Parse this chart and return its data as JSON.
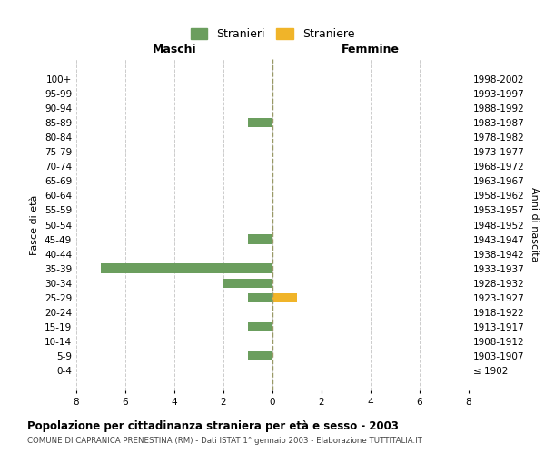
{
  "age_groups": [
    "100+",
    "95-99",
    "90-94",
    "85-89",
    "80-84",
    "75-79",
    "70-74",
    "65-69",
    "60-64",
    "55-59",
    "50-54",
    "45-49",
    "40-44",
    "35-39",
    "30-34",
    "25-29",
    "20-24",
    "15-19",
    "10-14",
    "5-9",
    "0-4"
  ],
  "birth_years": [
    "≤ 1902",
    "1903-1907",
    "1908-1912",
    "1913-1917",
    "1918-1922",
    "1923-1927",
    "1928-1932",
    "1933-1937",
    "1938-1942",
    "1943-1947",
    "1948-1952",
    "1953-1957",
    "1958-1962",
    "1963-1967",
    "1968-1972",
    "1973-1977",
    "1978-1982",
    "1983-1987",
    "1988-1992",
    "1993-1997",
    "1998-2002"
  ],
  "maschi_stranieri": [
    0,
    0,
    0,
    1,
    0,
    0,
    0,
    0,
    0,
    0,
    0,
    1,
    0,
    7,
    2,
    1,
    0,
    1,
    0,
    1,
    0
  ],
  "femmine_straniere": [
    0,
    0,
    0,
    0,
    0,
    0,
    0,
    0,
    0,
    0,
    0,
    0,
    0,
    0,
    0,
    1,
    0,
    0,
    0,
    0,
    0
  ],
  "color_stranieri": "#6b9e5e",
  "color_straniere": "#f0b429",
  "xlim": 8,
  "title": "Popolazione per cittadinanza straniera per età e sesso - 2003",
  "subtitle": "COMUNE DI CAPRANICA PRENESTINA (RM) - Dati ISTAT 1° gennaio 2003 - Elaborazione TUTTITALIA.IT",
  "ylabel_left": "Fasce di età",
  "ylabel_right": "Anni di nascita",
  "maschi_label": "Maschi",
  "femmine_label": "Femmine",
  "legend_stranieri": "Stranieri",
  "legend_straniere": "Straniere",
  "background_color": "#ffffff",
  "grid_color": "#cccccc",
  "zero_line_color": "#999966"
}
